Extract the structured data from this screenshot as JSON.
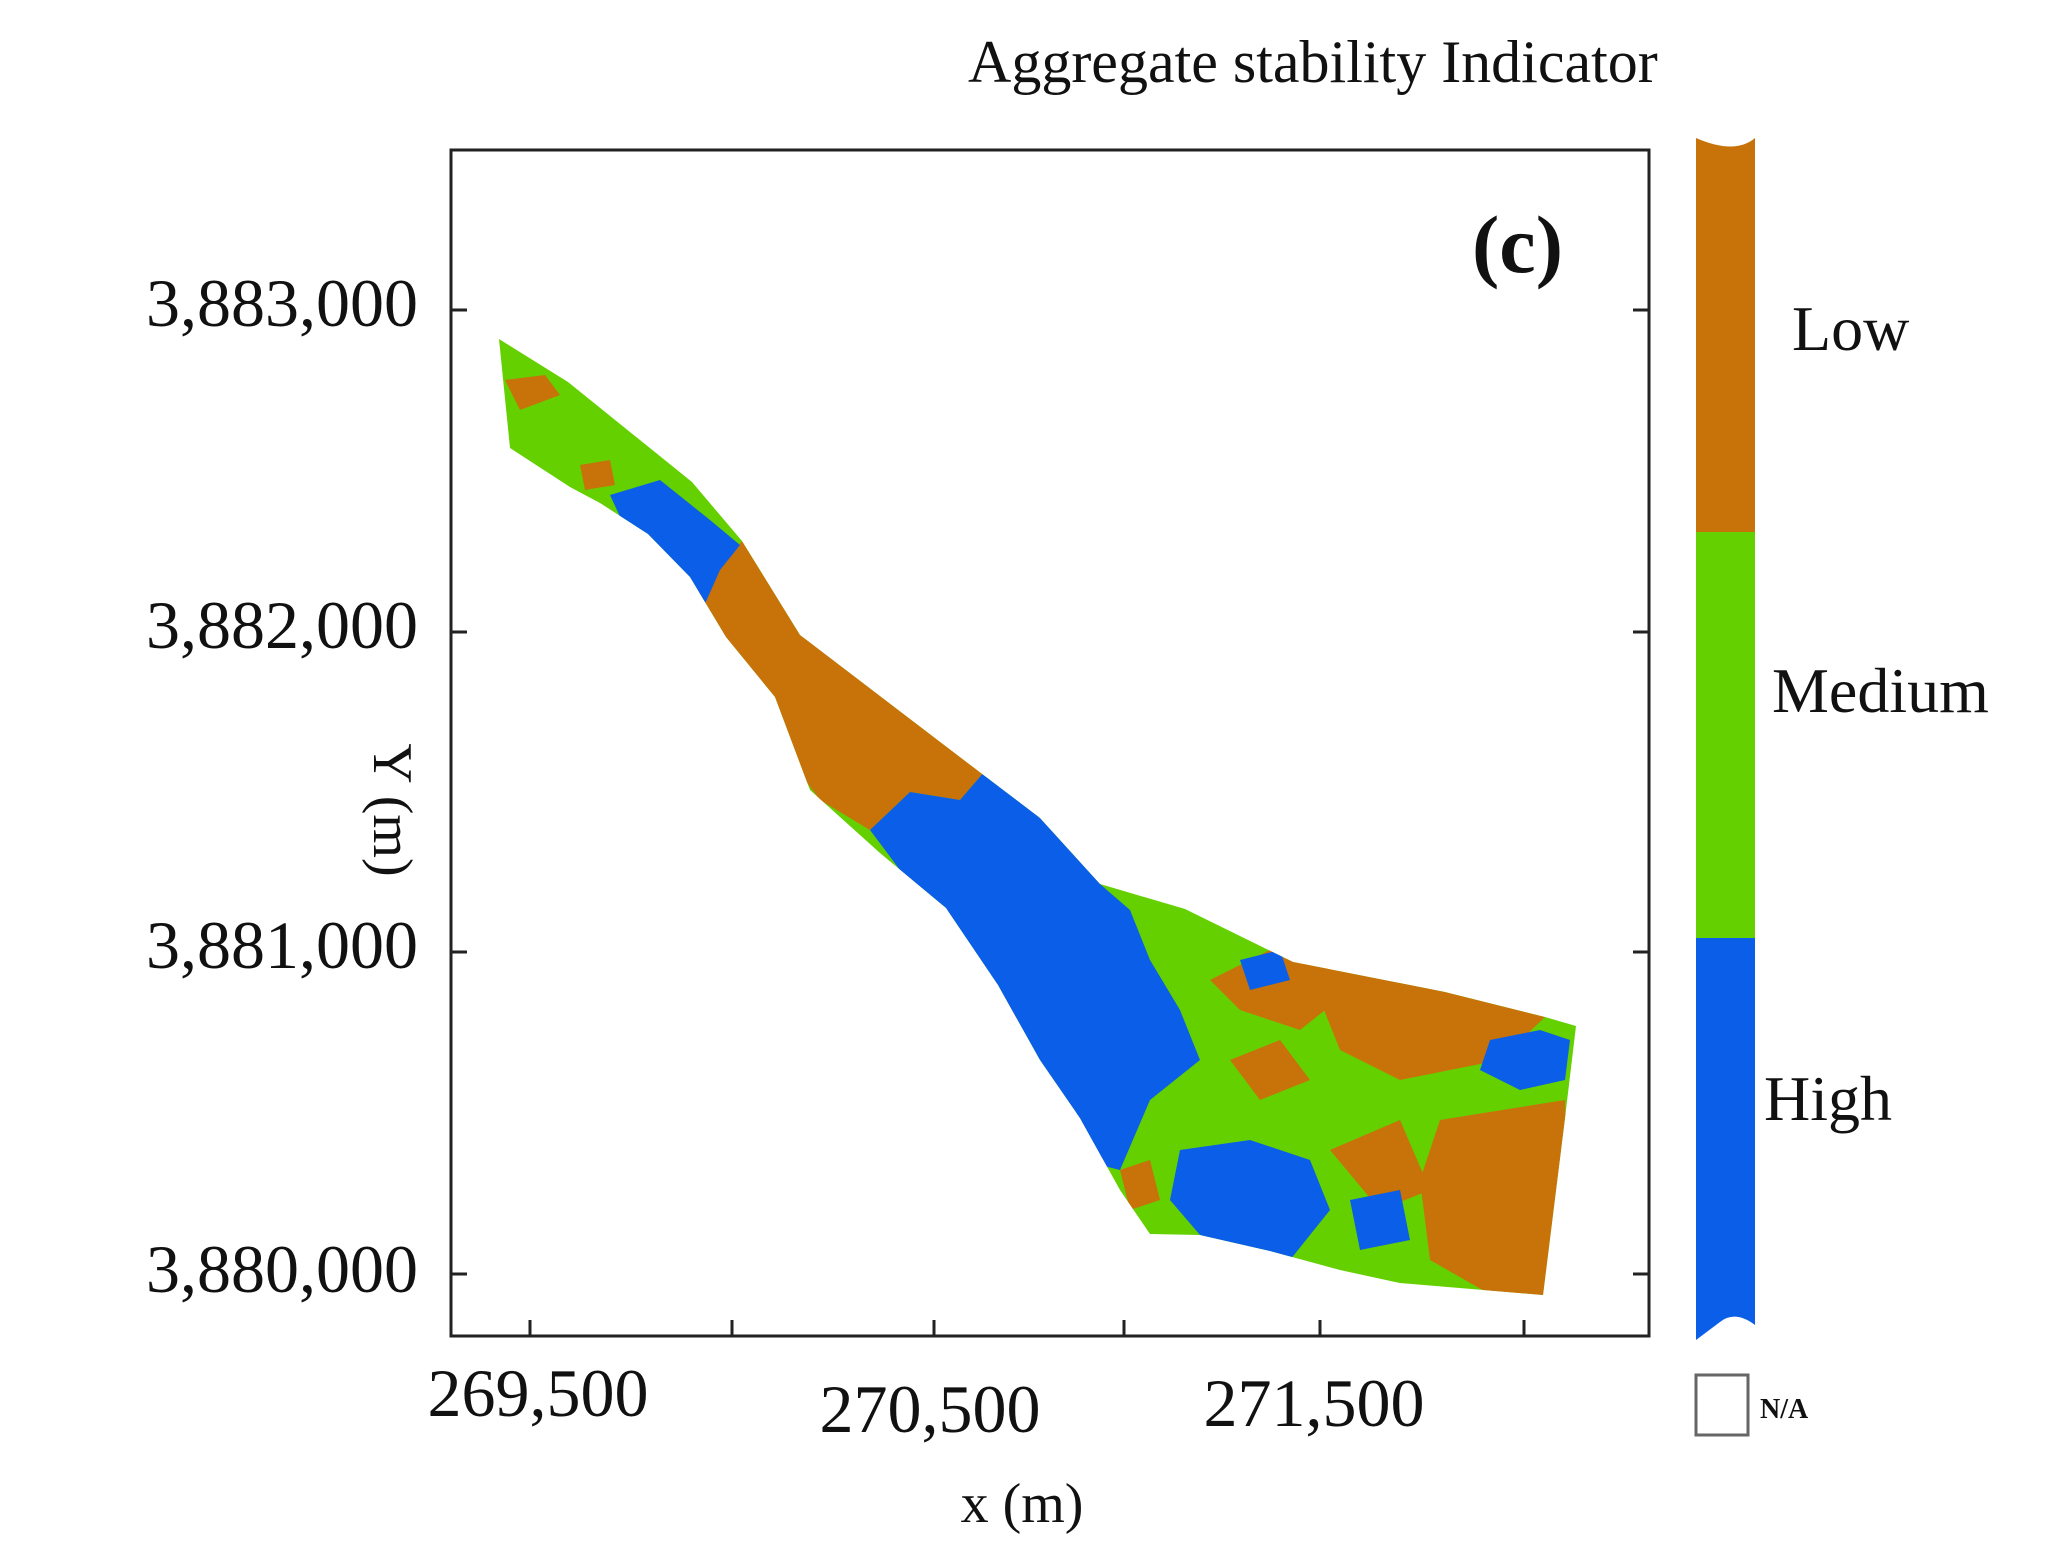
{
  "title": "Aggregate stability Indicator",
  "panel_label": "(c)",
  "x_axis": {
    "label": "x (m)",
    "ticks": [
      "269,500",
      "270,500",
      "271,500"
    ]
  },
  "y_axis": {
    "label": "Y (m)",
    "ticks": [
      "3,883,000",
      "3,882,000",
      "3,881,000",
      "3,880,000"
    ]
  },
  "legend": {
    "classes": [
      {
        "label": "Low",
        "color": "#c8720a"
      },
      {
        "label": "Medium",
        "color": "#64d000"
      },
      {
        "label": "High",
        "color": "#0a5ee8"
      }
    ],
    "na_label": "N/A"
  }
}
